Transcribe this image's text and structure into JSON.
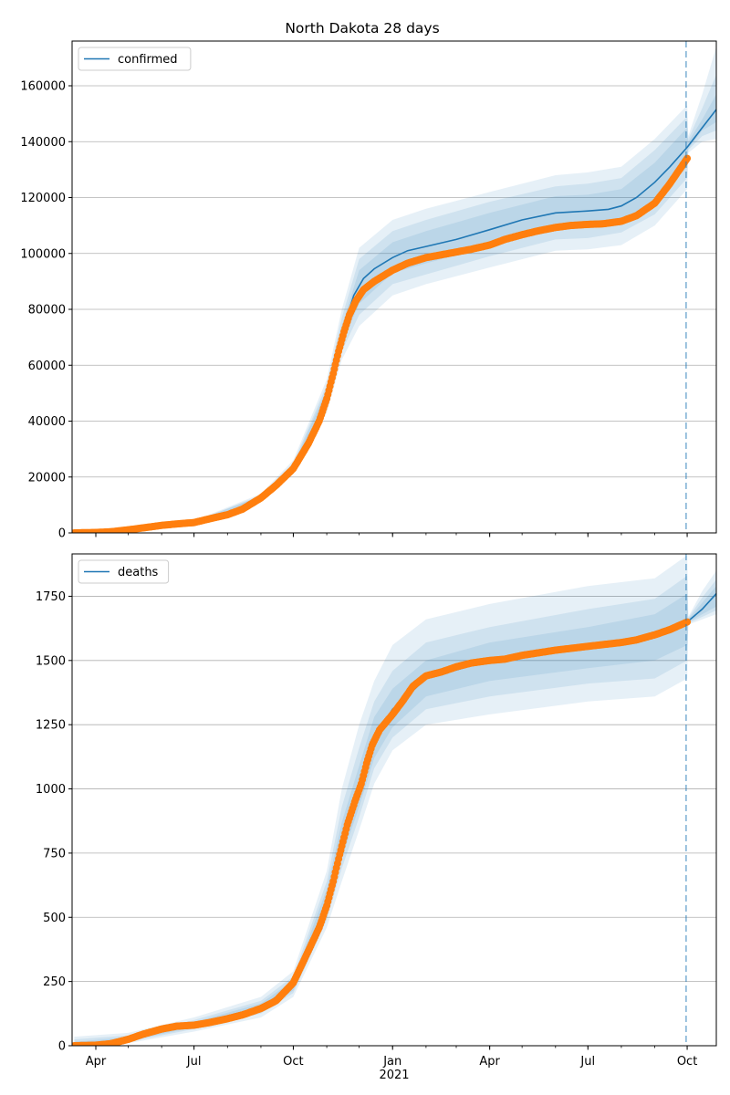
{
  "title": "North Dakota 28 days",
  "x_ticks": [
    {
      "label": "Apr",
      "date": "2020-04-01"
    },
    {
      "label": "Jul",
      "date": "2020-07-01"
    },
    {
      "label": "Oct",
      "date": "2020-10-01"
    },
    {
      "label": "Jan",
      "date": "2021-01-01"
    },
    {
      "label": "Apr",
      "date": "2021-04-01"
    },
    {
      "label": "Jul",
      "date": "2021-07-01"
    },
    {
      "label": "Oct",
      "date": "2021-10-01"
    }
  ],
  "year_label": "2021",
  "colors": {
    "model": "#1f77b4",
    "observed": "#ff7f0e",
    "band": "#1f77b4",
    "grid": "#b0b0b0"
  },
  "chart_data": [
    {
      "type": "line",
      "legend": "confirmed",
      "legend_position": "top-left",
      "grid": "y",
      "xlim": [
        "2020-03-10",
        "2021-10-28"
      ],
      "ylim": [
        0,
        176000
      ],
      "yticks": [
        0,
        20000,
        40000,
        60000,
        80000,
        100000,
        120000,
        140000,
        160000
      ],
      "forecast_start": "2021-09-30",
      "observed": [
        [
          "2020-03-12",
          0
        ],
        [
          "2020-04-01",
          150
        ],
        [
          "2020-04-15",
          400
        ],
        [
          "2020-05-01",
          1100
        ],
        [
          "2020-05-15",
          1800
        ],
        [
          "2020-06-01",
          2700
        ],
        [
          "2020-06-15",
          3200
        ],
        [
          "2020-07-01",
          3700
        ],
        [
          "2020-07-15",
          5000
        ],
        [
          "2020-08-01",
          6500
        ],
        [
          "2020-08-15",
          8500
        ],
        [
          "2020-09-01",
          12500
        ],
        [
          "2020-09-15",
          17000
        ],
        [
          "2020-10-01",
          23000
        ],
        [
          "2020-10-15",
          32000
        ],
        [
          "2020-10-25",
          40000
        ],
        [
          "2020-11-01",
          48000
        ],
        [
          "2020-11-07",
          57000
        ],
        [
          "2020-11-12",
          65000
        ],
        [
          "2020-11-17",
          72000
        ],
        [
          "2020-11-22",
          78000
        ],
        [
          "2020-11-28",
          83000
        ],
        [
          "2020-12-05",
          87000
        ],
        [
          "2020-12-15",
          90000
        ],
        [
          "2021-01-01",
          94000
        ],
        [
          "2021-01-15",
          96500
        ],
        [
          "2021-02-01",
          98500
        ],
        [
          "2021-02-15",
          99500
        ],
        [
          "2021-03-01",
          100500
        ],
        [
          "2021-03-15",
          101500
        ],
        [
          "2021-04-01",
          103000
        ],
        [
          "2021-04-15",
          105000
        ],
        [
          "2021-05-01",
          106700
        ],
        [
          "2021-05-15",
          108000
        ],
        [
          "2021-06-01",
          109300
        ],
        [
          "2021-06-15",
          110000
        ],
        [
          "2021-07-01",
          110400
        ],
        [
          "2021-07-15",
          110600
        ],
        [
          "2021-08-01",
          111500
        ],
        [
          "2021-08-15",
          113500
        ],
        [
          "2021-09-01",
          118000
        ],
        [
          "2021-09-15",
          125000
        ],
        [
          "2021-10-01",
          134000
        ]
      ],
      "model": [
        [
          "2020-03-12",
          0
        ],
        [
          "2020-05-01",
          1200
        ],
        [
          "2020-07-01",
          3800
        ],
        [
          "2020-08-01",
          6600
        ],
        [
          "2020-09-01",
          12700
        ],
        [
          "2020-10-01",
          23500
        ],
        [
          "2020-10-20",
          36000
        ],
        [
          "2020-11-01",
          49000
        ],
        [
          "2020-11-10",
          62000
        ],
        [
          "2020-11-18",
          75000
        ],
        [
          "2020-11-26",
          85000
        ],
        [
          "2020-12-05",
          91000
        ],
        [
          "2020-12-15",
          94500
        ],
        [
          "2021-01-01",
          98500
        ],
        [
          "2021-01-15",
          101000
        ],
        [
          "2021-02-01",
          102500
        ],
        [
          "2021-03-01",
          105000
        ],
        [
          "2021-04-01",
          108500
        ],
        [
          "2021-05-01",
          112000
        ],
        [
          "2021-06-01",
          114500
        ],
        [
          "2021-07-01",
          115200
        ],
        [
          "2021-07-20",
          115800
        ],
        [
          "2021-08-01",
          117000
        ],
        [
          "2021-08-15",
          120000
        ],
        [
          "2021-09-01",
          125500
        ],
        [
          "2021-09-15",
          131000
        ],
        [
          "2021-10-01",
          138000
        ],
        [
          "2021-10-15",
          145000
        ],
        [
          "2021-10-28",
          151500
        ]
      ],
      "bands": [
        [
          [
            "2020-03-12",
            0,
            0
          ],
          [
            "2020-07-01",
            3300,
            4300
          ],
          [
            "2020-09-01",
            11500,
            14000
          ],
          [
            "2020-10-01",
            21000,
            26000
          ],
          [
            "2020-11-01",
            43000,
            55000
          ],
          [
            "2020-11-15",
            62000,
            80000
          ],
          [
            "2020-12-01",
            74000,
            102000
          ],
          [
            "2021-01-01",
            85000,
            112000
          ],
          [
            "2021-02-01",
            89000,
            116000
          ],
          [
            "2021-04-01",
            95000,
            122000
          ],
          [
            "2021-06-01",
            101000,
            128000
          ],
          [
            "2021-07-01",
            101500,
            129000
          ],
          [
            "2021-08-01",
            103000,
            131000
          ],
          [
            "2021-09-01",
            110000,
            141000
          ],
          [
            "2021-10-01",
            123000,
            153000
          ],
          [
            "2021-10-02",
            136000,
            142000
          ],
          [
            "2021-10-15",
            140000,
            157000
          ],
          [
            "2021-10-28",
            141000,
            174000
          ]
        ],
        [
          [
            "2020-03-12",
            0,
            0
          ],
          [
            "2020-07-01",
            3500,
            4100
          ],
          [
            "2020-09-01",
            12000,
            13500
          ],
          [
            "2020-10-01",
            22000,
            25000
          ],
          [
            "2020-11-01",
            45000,
            53000
          ],
          [
            "2020-11-15",
            65000,
            77000
          ],
          [
            "2020-12-01",
            78000,
            98000
          ],
          [
            "2021-01-01",
            89000,
            108000
          ],
          [
            "2021-02-01",
            92500,
            112000
          ],
          [
            "2021-04-01",
            99000,
            118500
          ],
          [
            "2021-06-01",
            105000,
            124000
          ],
          [
            "2021-07-01",
            105500,
            125000
          ],
          [
            "2021-08-01",
            107500,
            127000
          ],
          [
            "2021-09-01",
            114000,
            137000
          ],
          [
            "2021-10-01",
            127000,
            149000
          ],
          [
            "2021-10-02",
            137000,
            141000
          ],
          [
            "2021-10-15",
            142000,
            152000
          ],
          [
            "2021-10-28",
            144000,
            164000
          ]
        ],
        [
          [
            "2020-03-12",
            0,
            0
          ],
          [
            "2020-07-01",
            3600,
            4000
          ],
          [
            "2020-09-01",
            12300,
            13200
          ],
          [
            "2020-10-01",
            22700,
            24300
          ],
          [
            "2020-11-01",
            46500,
            51500
          ],
          [
            "2020-11-15",
            68000,
            74000
          ],
          [
            "2020-12-01",
            82000,
            94000
          ],
          [
            "2021-01-01",
            93000,
            104000
          ],
          [
            "2021-02-01",
            96500,
            108000
          ],
          [
            "2021-04-01",
            102500,
            114500
          ],
          [
            "2021-06-01",
            108500,
            120500
          ],
          [
            "2021-07-01",
            109500,
            121000
          ],
          [
            "2021-08-01",
            111500,
            123000
          ],
          [
            "2021-09-01",
            118500,
            132500
          ],
          [
            "2021-10-01",
            131000,
            145000
          ],
          [
            "2021-10-02",
            137500,
            140000
          ],
          [
            "2021-10-15",
            144000,
            148000
          ],
          [
            "2021-10-28",
            147000,
            157000
          ]
        ]
      ]
    },
    {
      "type": "line",
      "legend": "deaths",
      "legend_position": "top-left",
      "grid": "y",
      "xlim": [
        "2020-03-10",
        "2021-10-28"
      ],
      "ylim": [
        0,
        1915
      ],
      "yticks": [
        0,
        250,
        500,
        750,
        1000,
        1250,
        1500,
        1750
      ],
      "forecast_start": "2021-09-30",
      "observed": [
        [
          "2020-03-12",
          0
        ],
        [
          "2020-04-01",
          2
        ],
        [
          "2020-04-15",
          8
        ],
        [
          "2020-05-01",
          25
        ],
        [
          "2020-05-15",
          45
        ],
        [
          "2020-06-01",
          65
        ],
        [
          "2020-06-15",
          76
        ],
        [
          "2020-07-01",
          80
        ],
        [
          "2020-07-15",
          90
        ],
        [
          "2020-08-01",
          105
        ],
        [
          "2020-08-15",
          120
        ],
        [
          "2020-09-01",
          145
        ],
        [
          "2020-09-15",
          175
        ],
        [
          "2020-10-01",
          245
        ],
        [
          "2020-10-15",
          370
        ],
        [
          "2020-10-25",
          460
        ],
        [
          "2020-11-01",
          545
        ],
        [
          "2020-11-07",
          640
        ],
        [
          "2020-11-13",
          745
        ],
        [
          "2020-11-20",
          860
        ],
        [
          "2020-11-27",
          950
        ],
        [
          "2020-12-03",
          1020
        ],
        [
          "2020-12-08",
          1100
        ],
        [
          "2020-12-13",
          1170
        ],
        [
          "2020-12-20",
          1230
        ],
        [
          "2021-01-01",
          1290
        ],
        [
          "2021-01-10",
          1340
        ],
        [
          "2021-01-20",
          1400
        ],
        [
          "2021-02-01",
          1440
        ],
        [
          "2021-02-15",
          1455
        ],
        [
          "2021-03-01",
          1475
        ],
        [
          "2021-03-15",
          1490
        ],
        [
          "2021-04-01",
          1500
        ],
        [
          "2021-04-15",
          1505
        ],
        [
          "2021-05-01",
          1520
        ],
        [
          "2021-06-01",
          1540
        ],
        [
          "2021-07-01",
          1555
        ],
        [
          "2021-08-01",
          1570
        ],
        [
          "2021-08-15",
          1580
        ],
        [
          "2021-09-01",
          1600
        ],
        [
          "2021-09-15",
          1620
        ],
        [
          "2021-10-01",
          1650
        ]
      ],
      "model": [
        [
          "2020-03-12",
          0
        ],
        [
          "2020-05-01",
          25
        ],
        [
          "2020-07-01",
          82
        ],
        [
          "2020-09-01",
          150
        ],
        [
          "2020-10-01",
          235
        ],
        [
          "2020-10-20",
          400
        ],
        [
          "2020-11-01",
          560
        ],
        [
          "2020-11-15",
          800
        ],
        [
          "2020-12-01",
          1010
        ],
        [
          "2020-12-15",
          1200
        ],
        [
          "2021-01-01",
          1310
        ],
        [
          "2021-02-01",
          1430
        ],
        [
          "2021-04-01",
          1500
        ],
        [
          "2021-07-01",
          1555
        ],
        [
          "2021-09-01",
          1600
        ],
        [
          "2021-10-01",
          1650
        ],
        [
          "2021-10-15",
          1700
        ],
        [
          "2021-10-28",
          1760
        ]
      ],
      "bands": [
        [
          [
            "2020-03-12",
            0,
            35
          ],
          [
            "2020-05-01",
            10,
            50
          ],
          [
            "2020-07-01",
            55,
            110
          ],
          [
            "2020-09-01",
            110,
            190
          ],
          [
            "2020-10-01",
            190,
            290
          ],
          [
            "2020-11-01",
            460,
            680
          ],
          [
            "2020-11-15",
            640,
            1000
          ],
          [
            "2020-12-01",
            840,
            1250
          ],
          [
            "2020-12-15",
            1020,
            1420
          ],
          [
            "2021-01-01",
            1150,
            1560
          ],
          [
            "2021-02-01",
            1250,
            1660
          ],
          [
            "2021-04-01",
            1290,
            1720
          ],
          [
            "2021-07-01",
            1340,
            1790
          ],
          [
            "2021-09-01",
            1360,
            1820
          ],
          [
            "2021-10-01",
            1430,
            1910
          ],
          [
            "2021-10-02",
            1640,
            1670
          ],
          [
            "2021-10-15",
            1660,
            1770
          ],
          [
            "2021-10-28",
            1680,
            1850
          ]
        ],
        [
          [
            "2020-03-12",
            0,
            25
          ],
          [
            "2020-05-01",
            15,
            40
          ],
          [
            "2020-07-01",
            65,
            100
          ],
          [
            "2020-09-01",
            125,
            175
          ],
          [
            "2020-10-01",
            205,
            270
          ],
          [
            "2020-11-01",
            490,
            640
          ],
          [
            "2020-11-15",
            690,
            930
          ],
          [
            "2020-12-01",
            890,
            1160
          ],
          [
            "2020-12-15",
            1080,
            1340
          ],
          [
            "2021-01-01",
            1200,
            1460
          ],
          [
            "2021-02-01",
            1310,
            1570
          ],
          [
            "2021-04-01",
            1360,
            1630
          ],
          [
            "2021-07-01",
            1410,
            1700
          ],
          [
            "2021-09-01",
            1430,
            1740
          ],
          [
            "2021-10-01",
            1500,
            1830
          ],
          [
            "2021-10-02",
            1645,
            1665
          ],
          [
            "2021-10-15",
            1670,
            1745
          ],
          [
            "2021-10-28",
            1695,
            1815
          ]
        ],
        [
          [
            "2020-03-12",
            0,
            15
          ],
          [
            "2020-05-01",
            19,
            33
          ],
          [
            "2020-07-01",
            72,
            92
          ],
          [
            "2020-09-01",
            135,
            165
          ],
          [
            "2020-10-01",
            215,
            255
          ],
          [
            "2020-11-01",
            515,
            610
          ],
          [
            "2020-11-15",
            730,
            870
          ],
          [
            "2020-12-01",
            930,
            1090
          ],
          [
            "2020-12-15",
            1120,
            1280
          ],
          [
            "2021-01-01",
            1240,
            1390
          ],
          [
            "2021-02-01",
            1360,
            1500
          ],
          [
            "2021-04-01",
            1420,
            1570
          ],
          [
            "2021-07-01",
            1470,
            1630
          ],
          [
            "2021-09-01",
            1500,
            1680
          ],
          [
            "2021-10-01",
            1560,
            1760
          ],
          [
            "2021-10-02",
            1648,
            1660
          ],
          [
            "2021-10-15",
            1680,
            1725
          ],
          [
            "2021-10-28",
            1710,
            1790
          ]
        ]
      ]
    }
  ]
}
